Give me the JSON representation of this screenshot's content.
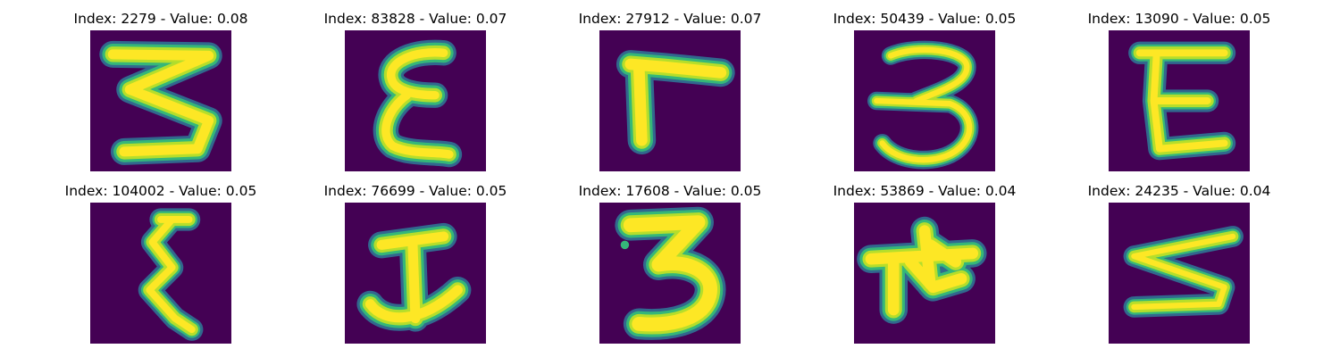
{
  "colors": {
    "background": "#440154",
    "stroke_core": "#fde725",
    "stroke_mid": "#b5de2b",
    "stroke_edge": "#35b779",
    "stroke_halo": "#31688e"
  },
  "panels": [
    {
      "index": "2279",
      "value": "0.08",
      "title": "Index: 2279 - Value: 0.08",
      "shape": "sigma-3"
    },
    {
      "index": "83828",
      "value": "0.07",
      "title": "Index: 83828 - Value: 0.07",
      "shape": "epsilon"
    },
    {
      "index": "27912",
      "value": "0.07",
      "title": "Index: 27912 - Value: 0.07",
      "shape": "gamma"
    },
    {
      "index": "50439",
      "value": "0.05",
      "title": "Index: 50439 - Value: 0.05",
      "shape": "three"
    },
    {
      "index": "13090",
      "value": "0.05",
      "title": "Index: 13090 - Value: 0.05",
      "shape": "capital-e"
    },
    {
      "index": "104002",
      "value": "0.05",
      "title": "Index: 104002 - Value: 0.05",
      "shape": "zigzag-e"
    },
    {
      "index": "76699",
      "value": "0.05",
      "title": "Index: 76699 - Value: 0.05",
      "shape": "anchor-i"
    },
    {
      "index": "17608",
      "value": "0.05",
      "title": "Index: 17608 - Value: 0.05",
      "shape": "bold-three"
    },
    {
      "index": "53869",
      "value": "0.04",
      "title": "Index: 53869 - Value: 0.04",
      "shape": "star-blob"
    },
    {
      "index": "24235",
      "value": "0.04",
      "title": "Index: 24235 - Value: 0.04",
      "shape": "sideways-s"
    }
  ]
}
